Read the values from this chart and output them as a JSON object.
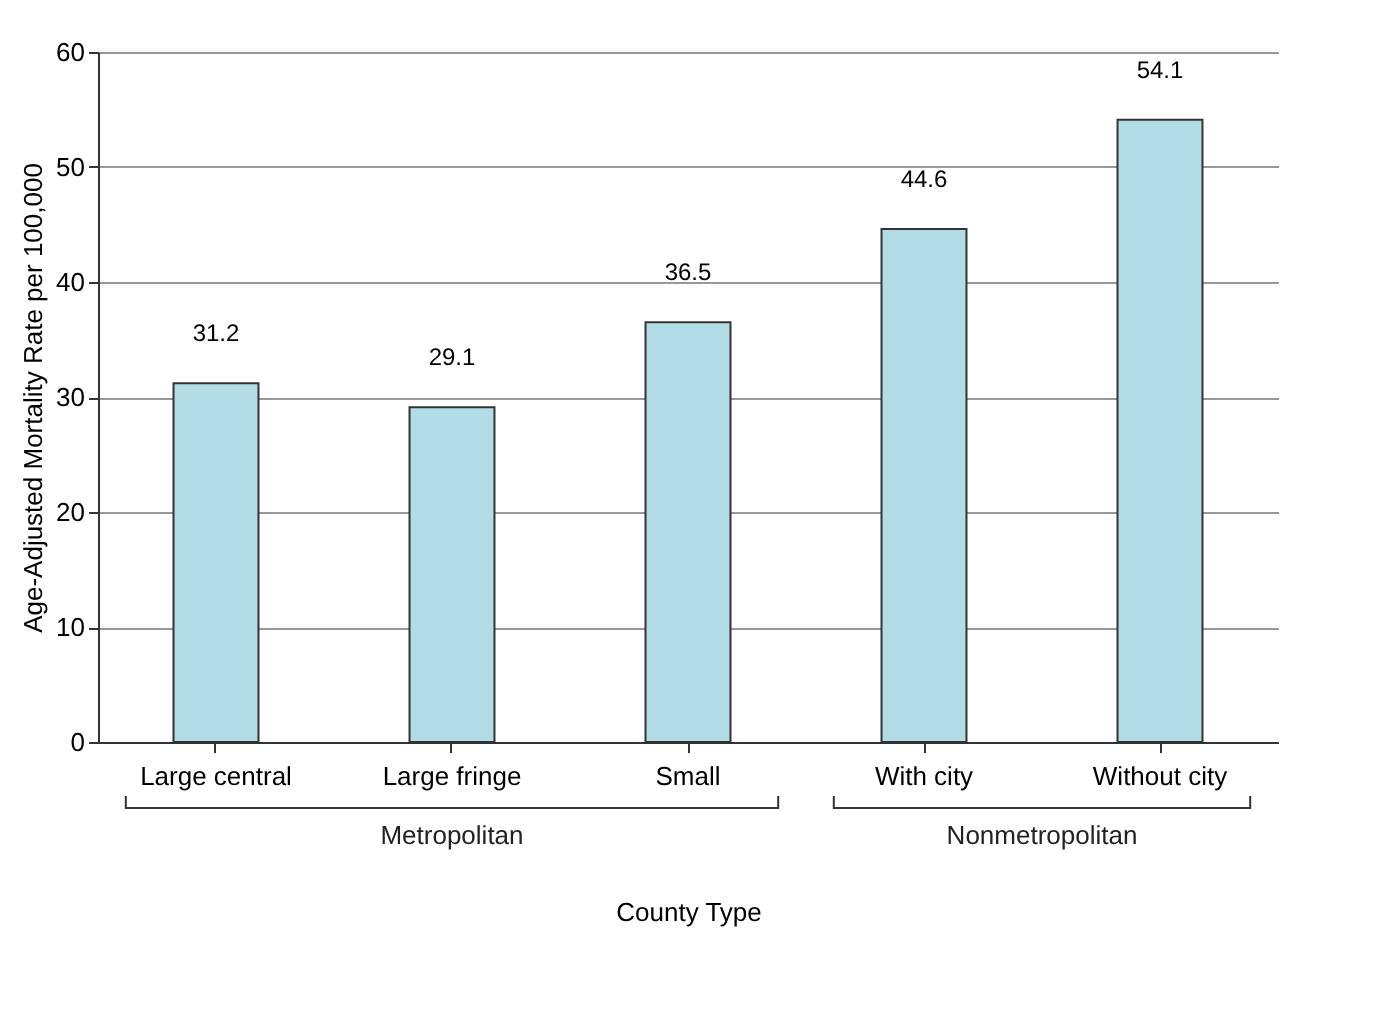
{
  "chart_data": {
    "type": "bar",
    "xlabel": "County Type",
    "ylabel": "Age-Adjusted Mortality Rate per 100,000",
    "categories": [
      "Large central",
      "Large fringe",
      "Small",
      "With city",
      "Without city"
    ],
    "values": [
      31.2,
      29.1,
      36.5,
      44.6,
      54.1
    ],
    "color": "#b3dde6",
    "ylim": [
      0,
      60
    ],
    "yticks": [
      0,
      10,
      20,
      30,
      40,
      50,
      60
    ],
    "grid": "y",
    "data_labels": true,
    "annotations": [
      "Metropolitan",
      "Nonmetropolitan"
    ]
  }
}
